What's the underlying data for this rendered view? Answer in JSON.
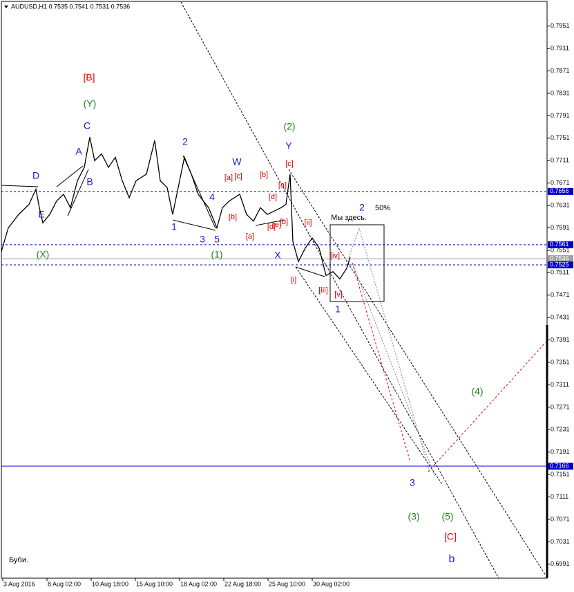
{
  "chart_data": {
    "type": "line",
    "title": "AUDUSD,H1  0.7535 0.7541 0.7531 0.7536",
    "x": [
      0,
      10,
      25,
      40,
      50,
      55,
      60,
      70,
      80,
      90,
      100,
      110,
      120,
      128,
      135,
      145,
      155,
      165,
      175,
      185,
      195,
      210,
      222,
      230,
      240,
      248,
      258,
      265,
      275,
      285,
      300,
      312,
      320,
      330,
      345,
      355,
      365,
      375,
      385,
      395,
      405,
      412,
      418,
      422,
      430,
      440,
      450,
      460,
      470,
      480,
      490,
      500,
      505
    ],
    "series": [
      {
        "name": "AUDUSD",
        "color": "#000000",
        "values": [
          0.7549,
          0.7591,
          0.7615,
          0.7633,
          0.766,
          0.7627,
          0.76,
          0.7615,
          0.7639,
          0.7651,
          0.7627,
          0.7675,
          0.7699,
          0.7753,
          0.7711,
          0.7723,
          0.7699,
          0.7717,
          0.7675,
          0.7645,
          0.7675,
          0.7687,
          0.7747,
          0.7675,
          0.7663,
          0.7615,
          0.7675,
          0.7717,
          0.7687,
          0.7651,
          0.7627,
          0.7591,
          0.7627,
          0.7639,
          0.7651,
          0.7615,
          0.7603,
          0.7627,
          0.7615,
          0.7621,
          0.7627,
          0.7633,
          0.7687,
          0.7567,
          0.7531,
          0.7555,
          0.7573,
          0.7555,
          0.7506,
          0.7513,
          0.75,
          0.7519,
          0.7539
        ]
      }
    ],
    "xlim": [
      0,
      790
    ],
    "xticks": [
      {
        "value": 2,
        "label": "3 Aug 2016"
      },
      {
        "value": 66,
        "label": "8 Aug 02:00"
      },
      {
        "value": 130,
        "label": "10 Aug 18:00"
      },
      {
        "value": 194,
        "label": "15 Aug 10:00"
      },
      {
        "value": 258,
        "label": "18 Aug 02:00"
      },
      {
        "value": 322,
        "label": "22 Aug 18:00"
      },
      {
        "value": 386,
        "label": "25 Aug 10:00"
      },
      {
        "value": 450,
        "label": "30 Aug 02:00"
      }
    ],
    "ylim": [
      0.69661,
      0.79951
    ],
    "yticks": [
      0.7951,
      0.7911,
      0.7871,
      0.7831,
      0.7791,
      0.7751,
      0.7711,
      0.7671,
      0.7631,
      0.7591,
      0.7551,
      0.7511,
      0.7471,
      0.7431,
      0.7391,
      0.7351,
      0.7311,
      0.7271,
      0.7231,
      0.7191,
      0.7151,
      0.7111,
      0.7071,
      0.7031,
      0.6991
    ],
    "levels": [
      {
        "value": 0.7656,
        "color": "#0000cc",
        "style": "dashed"
      },
      {
        "value": 0.7561,
        "color": "#0000cc",
        "style": "dashed"
      },
      {
        "value": 0.7536,
        "color": "#a0a0a0",
        "style": "solid"
      },
      {
        "value": 0.7525,
        "color": "#0000cc",
        "style": "dashed"
      },
      {
        "value": 0.7166,
        "color": "#0000cc",
        "style": "solid"
      }
    ],
    "annotations": [
      {
        "text": "[B]",
        "color": "#e00000"
      },
      {
        "text": "(Y)",
        "color": "#208020"
      },
      {
        "text": "C",
        "color": "#1a1acc"
      },
      {
        "text": "A",
        "color": "#1a1acc"
      },
      {
        "text": "B",
        "color": "#1a1acc"
      },
      {
        "text": "D",
        "color": "#1a1acc"
      },
      {
        "text": "E",
        "color": "#1a1acc"
      },
      {
        "text": "(X)",
        "color": "#208020"
      },
      {
        "text": "2",
        "color": "#1a1acc"
      },
      {
        "text": "1",
        "color": "#1a1acc"
      },
      {
        "text": "4",
        "color": "#1a1acc"
      },
      {
        "text": "3",
        "color": "#1a1acc"
      },
      {
        "text": "5",
        "color": "#1a1acc"
      },
      {
        "text": "(1)",
        "color": "#208020"
      },
      {
        "text": "W",
        "color": "#1a1acc"
      },
      {
        "text": "[a]",
        "color": "#e00000"
      },
      {
        "text": "[c]",
        "color": "#e00000"
      },
      {
        "text": "[b]",
        "color": "#e00000"
      },
      {
        "text": "[b]",
        "color": "#e00000"
      },
      {
        "text": "[a]",
        "color": "#e00000"
      },
      {
        "text": "[d]",
        "color": "#e00000"
      },
      {
        "text": "[d]",
        "color": "#e00000"
      },
      {
        "text": "[e]",
        "color": "#e00000"
      },
      {
        "text": "[b]",
        "color": "#e00000"
      },
      {
        "text": "[a]",
        "color": "#e00000"
      },
      {
        "text": "[c]",
        "color": "#e00000"
      },
      {
        "text": "Y",
        "color": "#1a1acc"
      },
      {
        "text": "(2)",
        "color": "#208020"
      },
      {
        "text": "X",
        "color": "#1a1acc"
      },
      {
        "text": "[i]",
        "color": "#e00000"
      },
      {
        "text": "[ii]",
        "color": "#e00000"
      },
      {
        "text": "[iii]",
        "color": "#e00000"
      },
      {
        "text": "[iv]",
        "color": "#e00000"
      },
      {
        "text": "[v]",
        "color": "#e00000"
      },
      {
        "text": "1",
        "color": "#1a1acc"
      },
      {
        "text": "Мы здесь.",
        "color": "#000000"
      },
      {
        "text": "2",
        "color": "#1a1acc"
      },
      {
        "text": "50%",
        "color": "#000000"
      },
      {
        "text": "(4)",
        "color": "#208020"
      },
      {
        "text": "3",
        "color": "#1a1acc"
      },
      {
        "text": "(3)",
        "color": "#208020"
      },
      {
        "text": "(5)",
        "color": "#208020"
      },
      {
        "text": "[C]",
        "color": "#e00000"
      },
      {
        "text": "b",
        "color": "#1a1acc"
      },
      {
        "text": "Буби.",
        "color": "#000000"
      }
    ]
  }
}
